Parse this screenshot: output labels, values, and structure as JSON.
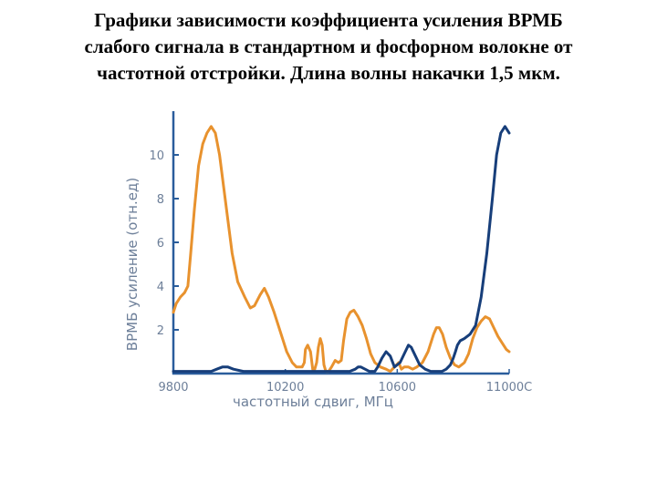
{
  "slide": {
    "title_lines": [
      "Графики зависимости коэффициента усиления ВРМБ",
      "слабого сигнала в стандартном и фосфорном волокне от",
      "частотной отстройки. Длина волны накачки 1,5 мкм."
    ]
  },
  "chart_data": {
    "type": "line",
    "title": "",
    "xlabel": "частотный сдвиг, МГц",
    "ylabel": "ВРМБ усиление (отн.ед)",
    "xlim": [
      9800,
      11000
    ],
    "ylim": [
      0,
      12
    ],
    "x_ticks": [
      9800,
      10200,
      10600,
      11000
    ],
    "x_tick_labels": [
      "9800",
      "10200",
      "10600",
      "11000С"
    ],
    "y_ticks": [
      2,
      4,
      6,
      8,
      10
    ],
    "y_tick_labels": [
      "2",
      "4",
      "6",
      "8",
      "10"
    ],
    "grid": false,
    "legend": "none",
    "axis_color": "#2a5d9c",
    "label_color": "#6d7f99",
    "series": [
      {
        "color": "#e8922e",
        "x": [
          9800,
          9810,
          9825,
          9840,
          9852,
          9862,
          9875,
          9890,
          9905,
          9920,
          9935,
          9950,
          9965,
          9980,
          9995,
          10010,
          10030,
          10055,
          10075,
          10090,
          10110,
          10125,
          10140,
          10160,
          10175,
          10190,
          10205,
          10225,
          10240,
          10260,
          10268,
          10272,
          10280,
          10290,
          10298,
          10305,
          10312,
          10318,
          10325,
          10332,
          10338,
          10345,
          10355,
          10365,
          10378,
          10390,
          10400,
          10408,
          10420,
          10432,
          10445,
          10460,
          10475,
          10490,
          10505,
          10520,
          10540,
          10560,
          10575,
          10590,
          10605,
          10615,
          10625,
          10640,
          10655,
          10670,
          10690,
          10710,
          10730,
          10740,
          10750,
          10762,
          10775,
          10790,
          10805,
          10820,
          10840,
          10855,
          10870,
          10885,
          10900,
          10915,
          10930,
          10945,
          10960,
          10975,
          10990,
          11000
        ],
        "y": [
          2.8,
          3.2,
          3.5,
          3.7,
          4.0,
          5.5,
          7.5,
          9.5,
          10.5,
          11.0,
          11.3,
          11.0,
          10.0,
          8.5,
          7.0,
          5.5,
          4.2,
          3.5,
          3.0,
          3.1,
          3.6,
          3.9,
          3.5,
          2.8,
          2.2,
          1.6,
          1.0,
          0.5,
          0.3,
          0.3,
          0.5,
          1.1,
          1.3,
          1.0,
          0.2,
          0.2,
          0.5,
          1.2,
          1.6,
          1.3,
          0.4,
          0.1,
          0.1,
          0.3,
          0.6,
          0.5,
          0.6,
          1.5,
          2.5,
          2.8,
          2.9,
          2.6,
          2.2,
          1.6,
          0.9,
          0.5,
          0.3,
          0.2,
          0.1,
          0.3,
          0.5,
          0.2,
          0.3,
          0.3,
          0.2,
          0.3,
          0.5,
          1.0,
          1.8,
          2.1,
          2.1,
          1.8,
          1.2,
          0.7,
          0.4,
          0.3,
          0.5,
          0.9,
          1.6,
          2.1,
          2.4,
          2.6,
          2.5,
          2.1,
          1.7,
          1.4,
          1.1,
          1.0
        ]
      },
      {
        "color": "#173e7a",
        "x": [
          9800,
          9850,
          9900,
          9935,
          9955,
          9975,
          9995,
          10015,
          10050,
          10100,
          10150,
          10200,
          10250,
          10300,
          10350,
          10380,
          10410,
          10430,
          10450,
          10460,
          10470,
          10485,
          10500,
          10520,
          10530,
          10545,
          10560,
          10575,
          10590,
          10610,
          10625,
          10640,
          10650,
          10665,
          10680,
          10700,
          10720,
          10740,
          10760,
          10775,
          10790,
          10800,
          10808,
          10815,
          10825,
          10840,
          10860,
          10880,
          10900,
          10920,
          10940,
          10955,
          10970,
          10985,
          11000
        ],
        "y": [
          0.1,
          0.1,
          0.1,
          0.1,
          0.2,
          0.3,
          0.3,
          0.2,
          0.1,
          0.1,
          0.1,
          0.1,
          0.1,
          0.1,
          0.1,
          0.1,
          0.1,
          0.1,
          0.2,
          0.3,
          0.3,
          0.2,
          0.1,
          0.1,
          0.3,
          0.7,
          1.0,
          0.8,
          0.3,
          0.5,
          0.9,
          1.3,
          1.2,
          0.8,
          0.4,
          0.2,
          0.1,
          0.1,
          0.1,
          0.2,
          0.4,
          0.7,
          1.0,
          1.3,
          1.5,
          1.6,
          1.8,
          2.2,
          3.5,
          5.5,
          8.0,
          10.0,
          11.0,
          11.3,
          11.0
        ]
      }
    ]
  }
}
